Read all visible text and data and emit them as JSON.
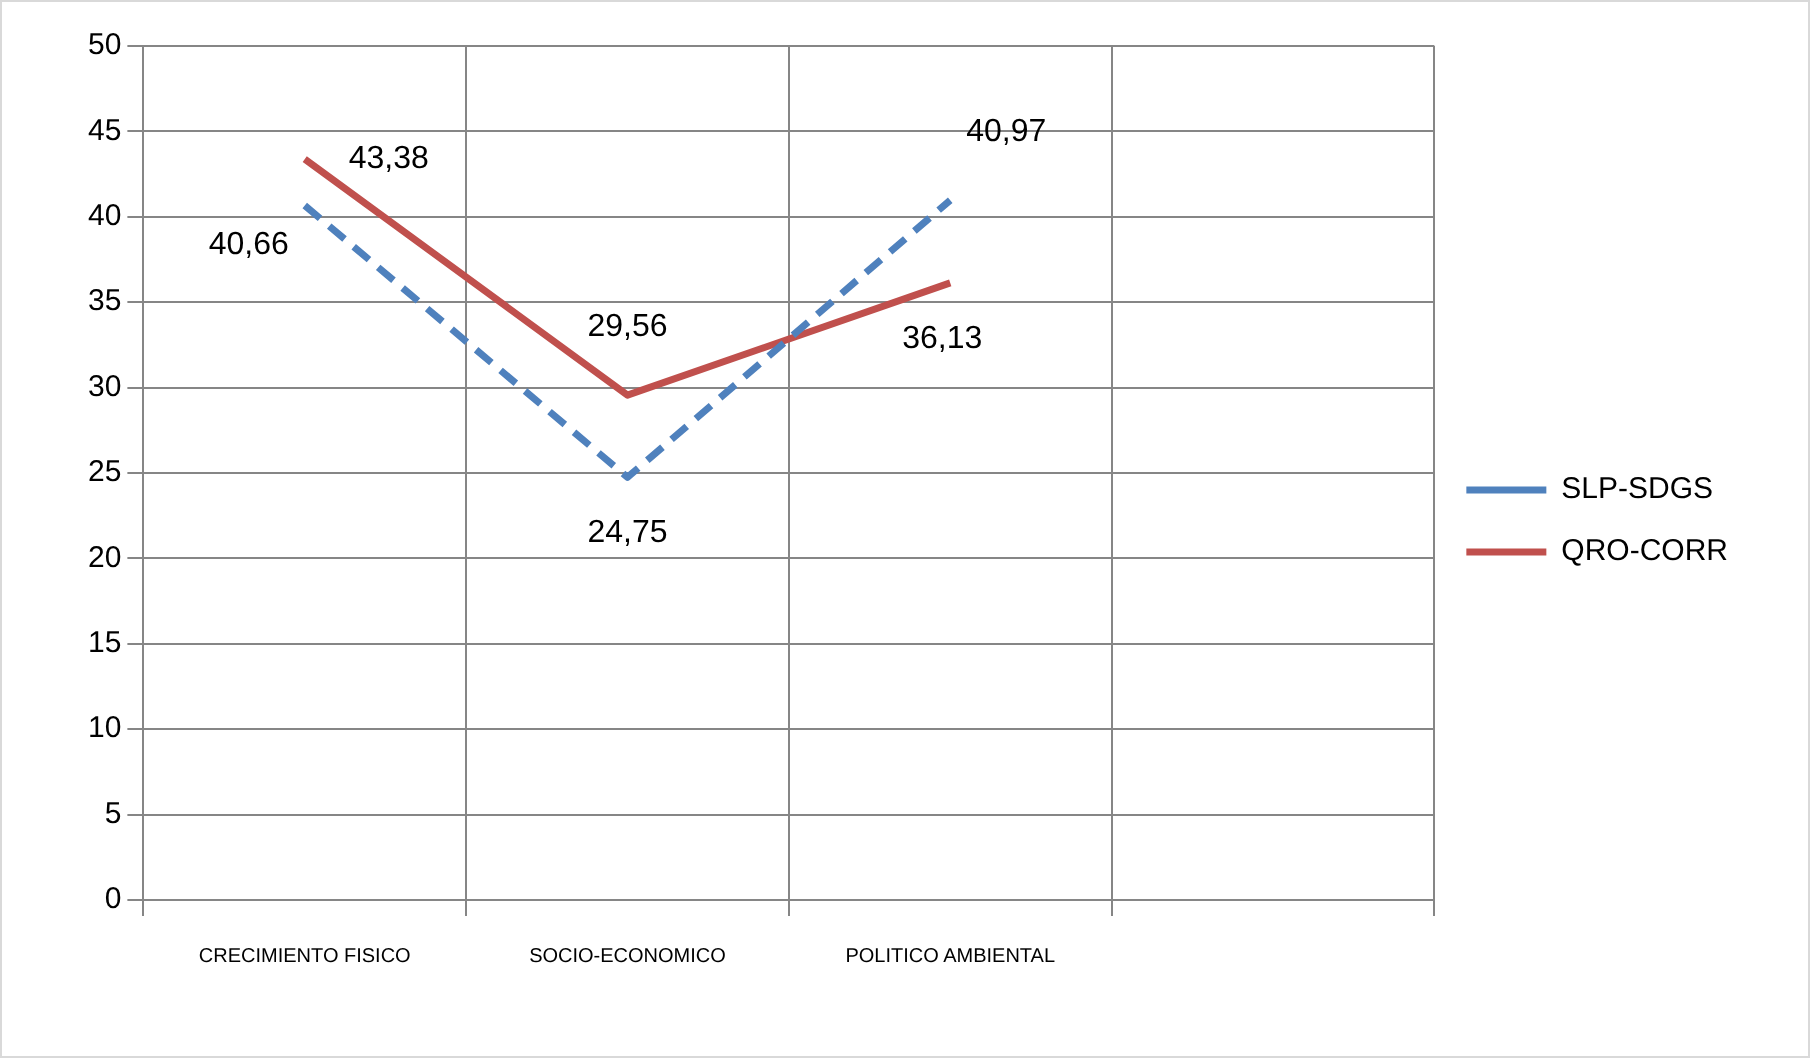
{
  "chart_data": {
    "type": "line",
    "categories": [
      "CRECIMIENTO FISICO",
      "SOCIO-ECONOMICO",
      "POLITICO AMBIENTAL",
      null
    ],
    "series": [
      {
        "name": "SLP-SDGS",
        "color": "#4f81bd",
        "values": [
          40.66,
          24.75,
          40.97,
          null
        ],
        "value_labels": [
          "40,66",
          "24,75",
          "40,97",
          null
        ],
        "line_style": "dashed"
      },
      {
        "name": "QRO-CORR",
        "color": "#c0504d",
        "values": [
          43.38,
          29.56,
          36.13,
          null
        ],
        "value_labels": [
          "43,38",
          "29,56",
          "36,13",
          null
        ],
        "line_style": "solid"
      }
    ],
    "ylim": [
      0,
      50
    ],
    "yticks": [
      0,
      5,
      10,
      15,
      20,
      25,
      30,
      35,
      40,
      45,
      50
    ],
    "grid": true,
    "legend": "right",
    "marker": "none"
  }
}
